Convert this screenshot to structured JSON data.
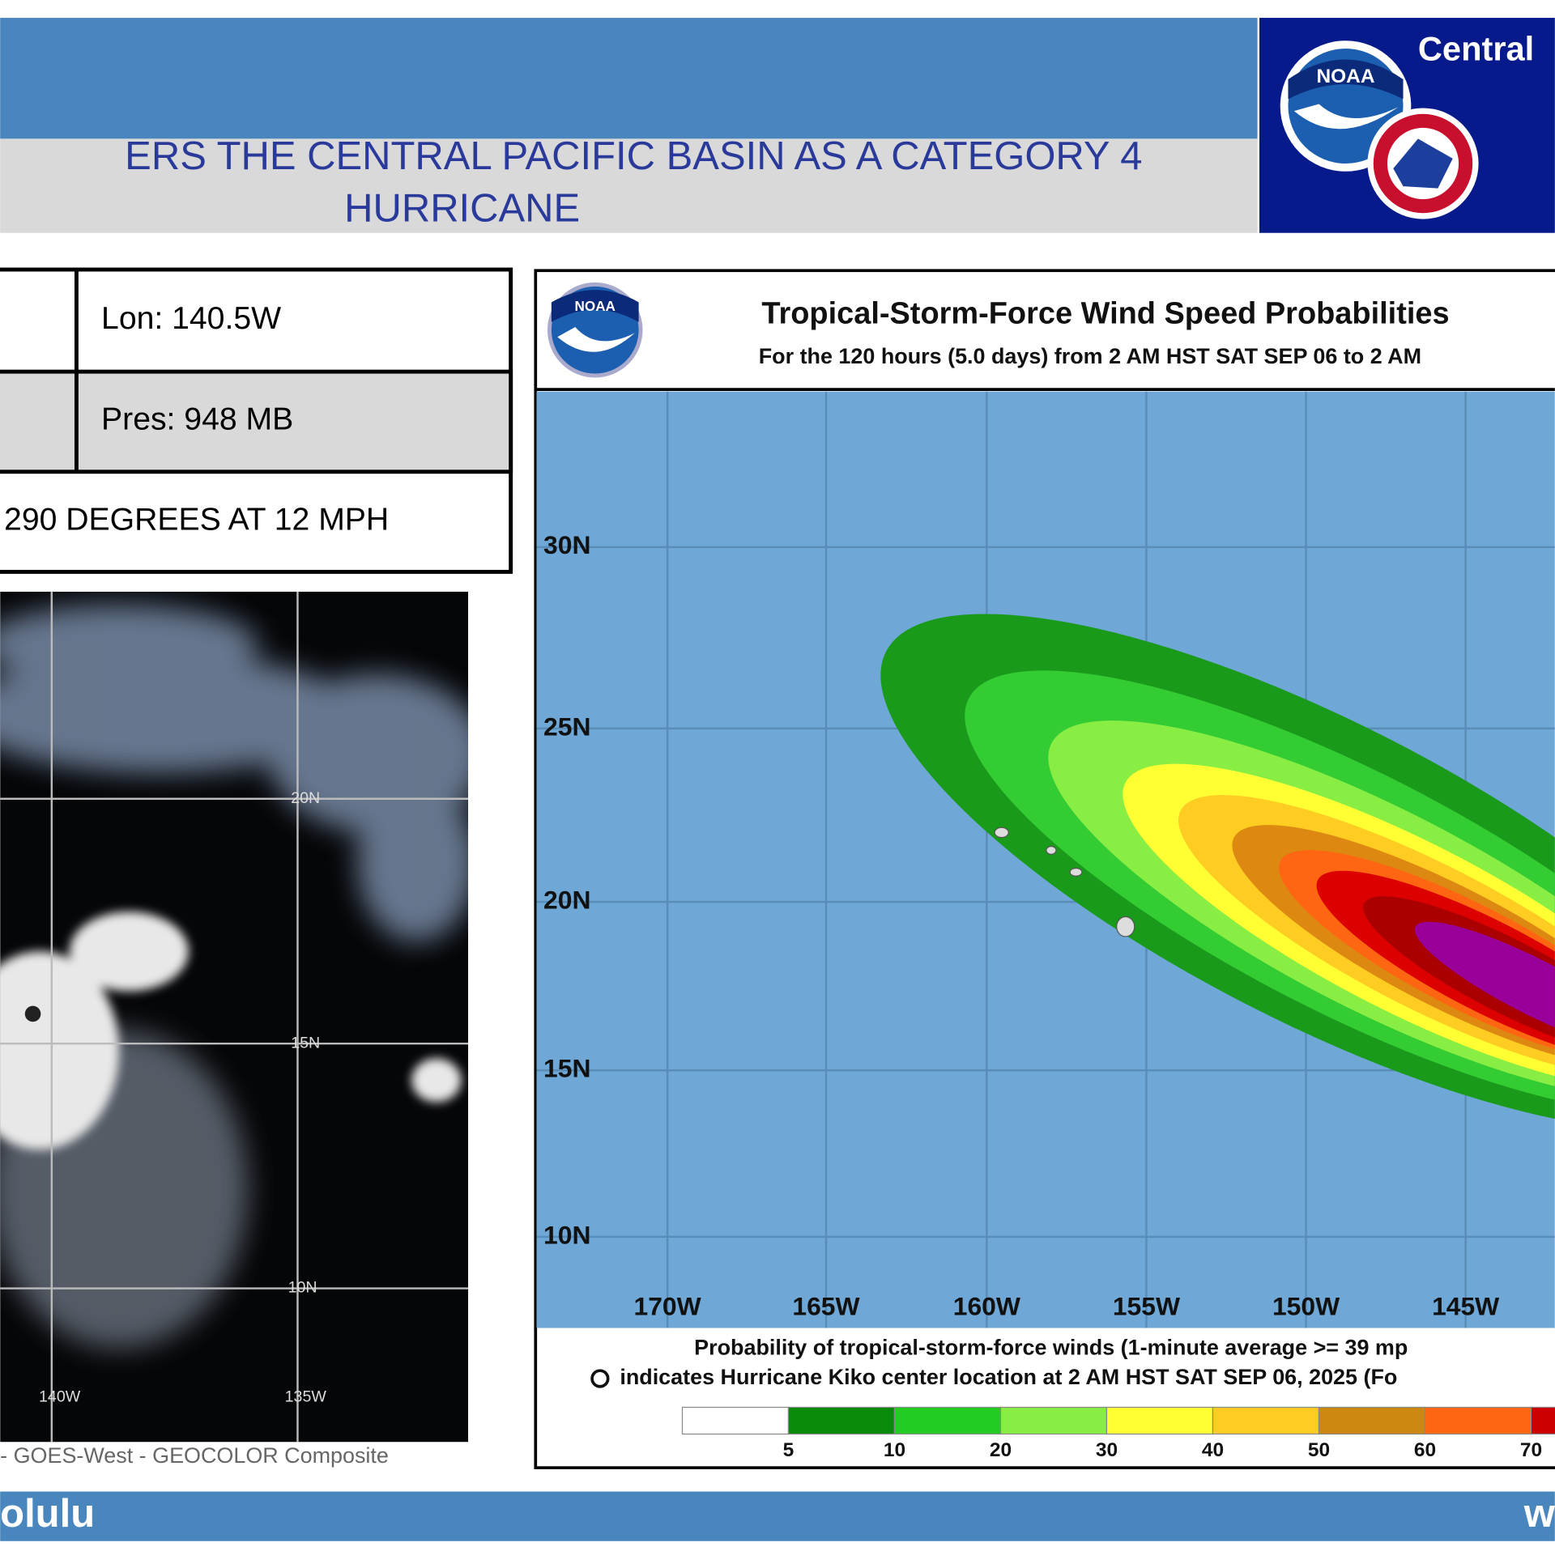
{
  "header": {
    "headline": [
      "ERS THE CENTRAL PACIFIC BASIN AS A CATEGORY 4",
      "HURRICANE"
    ],
    "office": "Central",
    "logo_text": "NOAA"
  },
  "info_table": {
    "rows": [
      "Lon: 140.5W",
      "Pres: 948 MB",
      "290 DEGREES AT 12 MPH"
    ]
  },
  "satellite": {
    "grid_labels": [
      "20N",
      "15N",
      "10N",
      "140W",
      "135W"
    ],
    "caption": "- GOES-West - GEOCOLOR Composite"
  },
  "map": {
    "title": "Tropical-Storm-Force Wind Speed Probabilities",
    "subtitle": "For the 120 hours (5.0 days) from 2 AM HST SAT SEP 06 to 2 AM",
    "latitudes": [
      "30N",
      "25N",
      "20N",
      "15N",
      "10N"
    ],
    "longitudes": [
      "170W",
      "165W",
      "160W",
      "155W",
      "150W",
      "145W"
    ],
    "notes": [
      "Probability of tropical-storm-force winds (1-minute average >= 39 mp",
      "indicates Hurricane Kiko center location at 2 AM HST SAT SEP 06, 2025 (Fo"
    ],
    "scale_ticks": [
      5,
      10,
      20,
      30,
      40,
      50,
      60,
      70
    ]
  },
  "footer": {
    "left": "olulu",
    "right": "w"
  }
}
